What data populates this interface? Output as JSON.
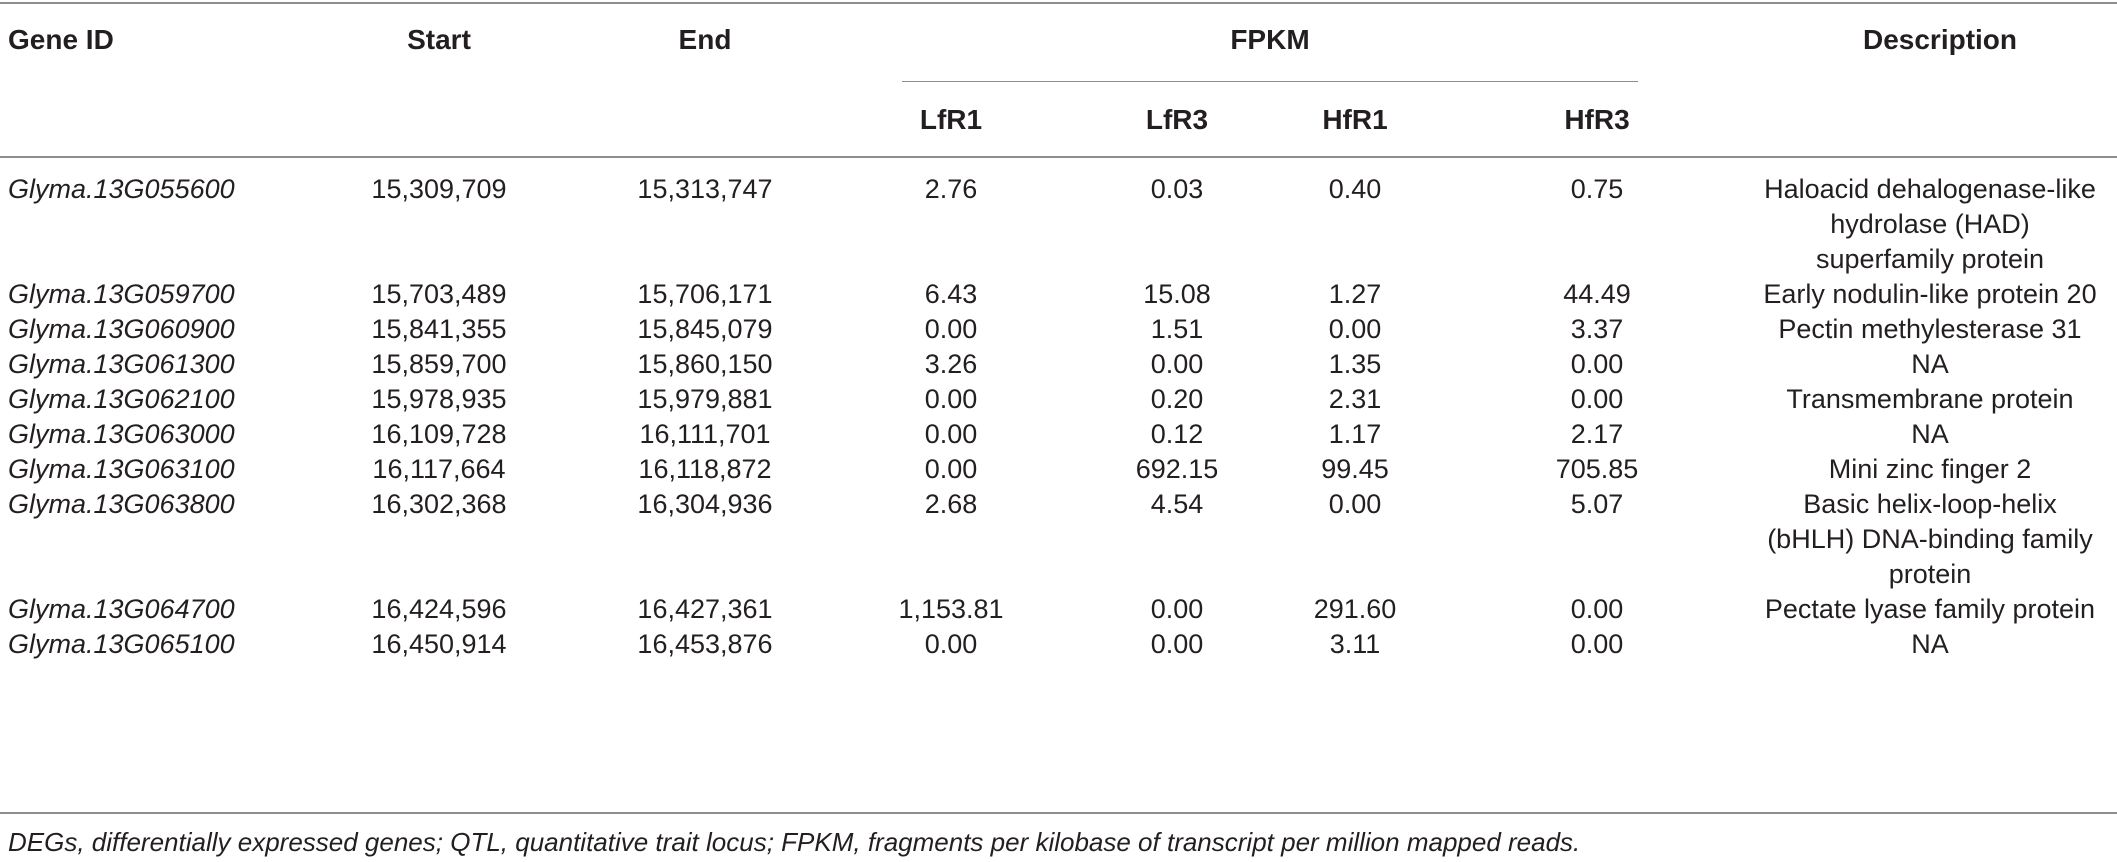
{
  "header": {
    "gene_id": "Gene ID",
    "start": "Start",
    "end": "End",
    "fpkm": "FPKM",
    "description": "Description",
    "sub": [
      "LfR1",
      "LfR3",
      "HfR1",
      "HfR3"
    ]
  },
  "rows": [
    {
      "gene_id": "Glyma.13G055600",
      "start": "15,309,709",
      "end": "15,313,747",
      "lfr1": "2.76",
      "lfr3": "0.03",
      "hfr1": "0.40",
      "hfr3": "0.75",
      "description": [
        "Haloacid dehalogenase-like",
        "hydrolase (HAD)",
        "superfamily protein"
      ]
    },
    {
      "gene_id": "Glyma.13G059700",
      "start": "15,703,489",
      "end": "15,706,171",
      "lfr1": "6.43",
      "lfr3": "15.08",
      "hfr1": "1.27",
      "hfr3": "44.49",
      "description": [
        "Early nodulin-like protein 20"
      ]
    },
    {
      "gene_id": "Glyma.13G060900",
      "start": "15,841,355",
      "end": "15,845,079",
      "lfr1": "0.00",
      "lfr3": "1.51",
      "hfr1": "0.00",
      "hfr3": "3.37",
      "description": [
        "Pectin methylesterase 31"
      ]
    },
    {
      "gene_id": "Glyma.13G061300",
      "start": "15,859,700",
      "end": "15,860,150",
      "lfr1": "3.26",
      "lfr3": "0.00",
      "hfr1": "1.35",
      "hfr3": "0.00",
      "description": [
        "NA"
      ]
    },
    {
      "gene_id": "Glyma.13G062100",
      "start": "15,978,935",
      "end": "15,979,881",
      "lfr1": "0.00",
      "lfr3": "0.20",
      "hfr1": "2.31",
      "hfr3": "0.00",
      "description": [
        "Transmembrane protein"
      ]
    },
    {
      "gene_id": "Glyma.13G063000",
      "start": "16,109,728",
      "end": "16,111,701",
      "lfr1": "0.00",
      "lfr3": "0.12",
      "hfr1": "1.17",
      "hfr3": "2.17",
      "description": [
        "NA"
      ]
    },
    {
      "gene_id": "Glyma.13G063100",
      "start": "16,117,664",
      "end": "16,118,872",
      "lfr1": "0.00",
      "lfr3": "692.15",
      "hfr1": "99.45",
      "hfr3": "705.85",
      "description": [
        "Mini zinc finger 2"
      ]
    },
    {
      "gene_id": "Glyma.13G063800",
      "start": "16,302,368",
      "end": "16,304,936",
      "lfr1": "2.68",
      "lfr3": "4.54",
      "hfr1": "0.00",
      "hfr3": "5.07",
      "description": [
        "Basic helix-loop-helix",
        "(bHLH) DNA-binding family",
        "protein"
      ]
    },
    {
      "gene_id": "Glyma.13G064700",
      "start": "16,424,596",
      "end": "16,427,361",
      "lfr1": "1,153.81",
      "lfr3": "0.00",
      "hfr1": "291.60",
      "hfr3": "0.00",
      "description": [
        "Pectate lyase family protein"
      ]
    },
    {
      "gene_id": "Glyma.13G065100",
      "start": "16,450,914",
      "end": "16,453,876",
      "lfr1": "0.00",
      "lfr3": "0.00",
      "hfr1": "3.11",
      "hfr3": "0.00",
      "description": [
        "NA"
      ]
    }
  ],
  "footnote": "DEGs, differentially expressed genes; QTL, quantitative trait locus; FPKM, fragments per kilobase of transcript per million mapped reads."
}
